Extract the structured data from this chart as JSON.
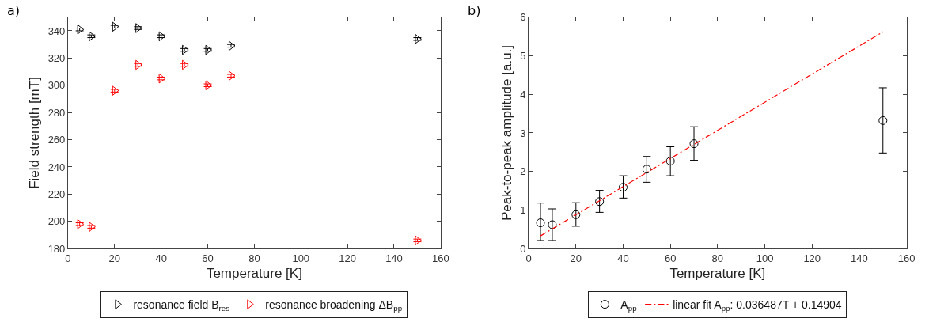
{
  "chart_data": [
    {
      "type": "scatter",
      "title": "a)",
      "xlabel": "Temperature [K]",
      "ylabel": "Field strength [mT]",
      "x": [
        5,
        10,
        20,
        30,
        40,
        50,
        60,
        70,
        150
      ],
      "xlim": [
        0,
        160
      ],
      "xticks": [
        0,
        20,
        40,
        60,
        80,
        100,
        120,
        140,
        160
      ],
      "ylim": [
        180,
        350
      ],
      "yticks": [
        180,
        200,
        220,
        240,
        260,
        280,
        300,
        320,
        340
      ],
      "legend": "bottom",
      "marker": "triangle",
      "series": [
        {
          "name": "resonance field B$_{res}$",
          "color": "#000000",
          "values": [
            341,
            336,
            343,
            342,
            336,
            326,
            326,
            329,
            334
          ],
          "errors": [
            1,
            1,
            1,
            1,
            1,
            1,
            1,
            1,
            1
          ]
        },
        {
          "name": "resonance broadening ΔB$_{pp}$",
          "color": "#ff0000",
          "values": [
            198,
            196,
            296,
            315,
            305,
            315,
            300,
            307,
            186
          ],
          "errors": [
            1,
            1,
            1,
            1,
            1,
            1,
            1,
            1,
            1
          ]
        }
      ]
    },
    {
      "type": "scatter",
      "title": "b)",
      "xlabel": "Temperature [K]",
      "ylabel": "Peak-to-peak amplitude [a.u.]",
      "x": [
        5,
        10,
        20,
        30,
        40,
        50,
        60,
        70,
        150
      ],
      "xlim": [
        0,
        160
      ],
      "xticks": [
        0,
        20,
        40,
        60,
        80,
        100,
        120,
        140,
        160
      ],
      "ylim": [
        0,
        6
      ],
      "yticks": [
        0,
        1,
        2,
        3,
        4,
        5,
        6
      ],
      "legend": "bottom",
      "series": [
        {
          "name": "A$_{pp}$",
          "color": "#000000",
          "marker": "circle",
          "values": [
            0.67,
            0.62,
            0.88,
            1.22,
            1.59,
            2.06,
            2.27,
            2.72,
            3.32
          ],
          "errors": [
            [
              0.21,
              1.18
            ],
            [
              0.21,
              1.03
            ],
            [
              0.58,
              1.19
            ],
            [
              0.94,
              1.51
            ],
            [
              1.31,
              1.89
            ],
            [
              1.72,
              2.39
            ],
            [
              1.89,
              2.64
            ],
            [
              2.29,
              3.16
            ],
            [
              2.48,
              4.17
            ]
          ]
        },
        {
          "name": "linear fit A$_{pp}$: 0.036487T + 0.14904",
          "type": "line",
          "color": "#ff0000",
          "line_style": "dashdot",
          "marker": "none",
          "x": [
            5,
            150
          ],
          "values": [
            0.33,
            5.62
          ]
        }
      ]
    }
  ]
}
